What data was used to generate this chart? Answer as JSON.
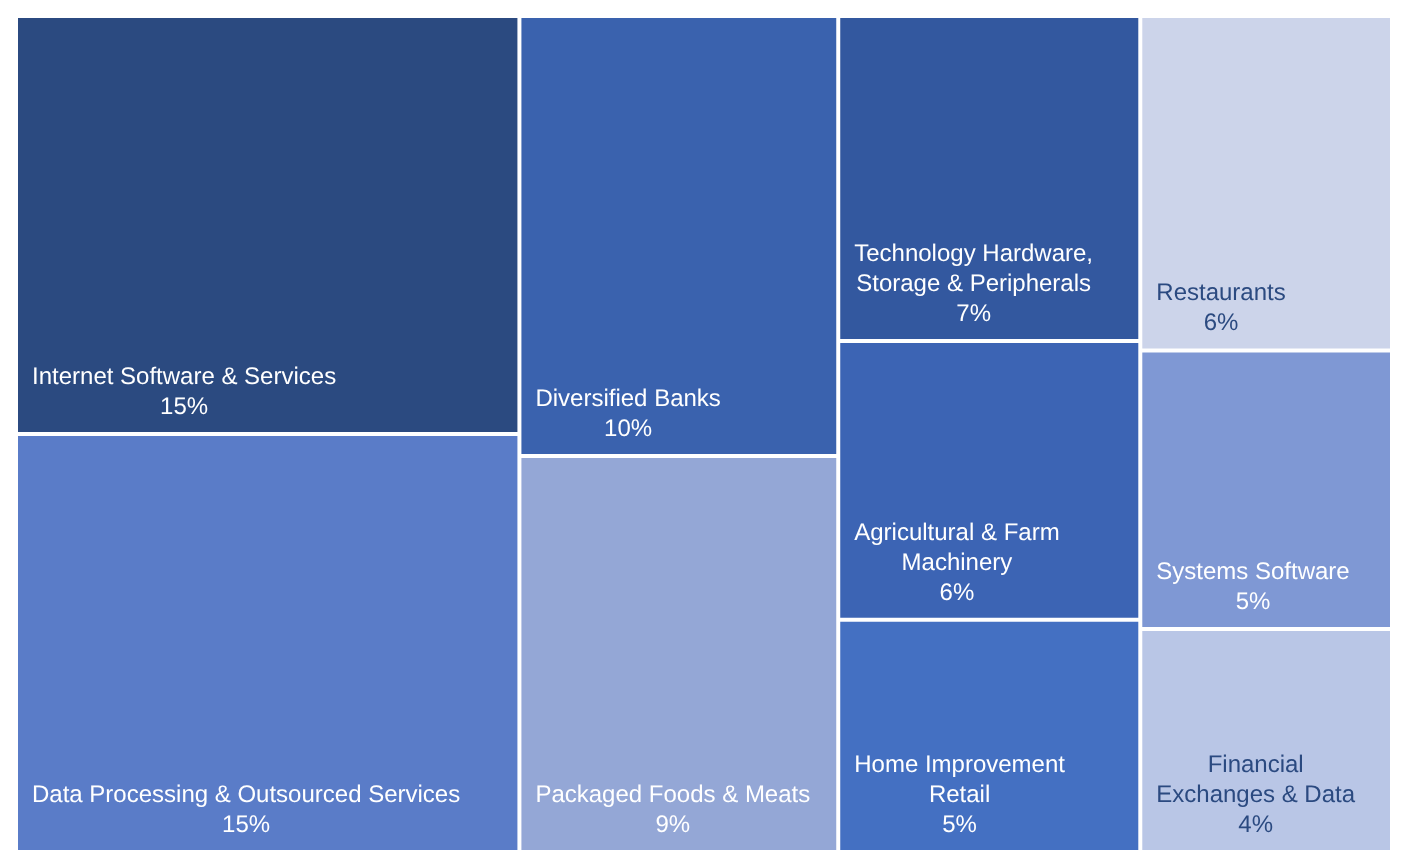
{
  "chart_data": {
    "type": "other",
    "categories": [
      "Internet Software & Services",
      "Data Processing & Outsourced Services",
      "Diversified Banks",
      "Packaged Foods & Meats",
      "Technology Hardware, Storage & Peripherals",
      "Agricultural & Farm Machinery",
      "Home Improvement Retail",
      "Restaurants",
      "Systems Software",
      "Financial Exchanges & Data"
    ],
    "values": [
      15,
      15,
      10,
      9,
      7,
      6,
      5,
      6,
      5,
      4
    ],
    "value_labels": [
      "15%",
      "15%",
      "10%",
      "9%",
      "7%",
      "6%",
      "5%",
      "6%",
      "5%",
      "4%"
    ],
    "colors": [
      "#2b4a80",
      "#5a7cc8",
      "#3a62ae",
      "#94a7d6",
      "#33589f",
      "#3c64b4",
      "#4470c2",
      "#ccd4ea",
      "#7f98d4",
      "#b9c6e6"
    ]
  }
}
